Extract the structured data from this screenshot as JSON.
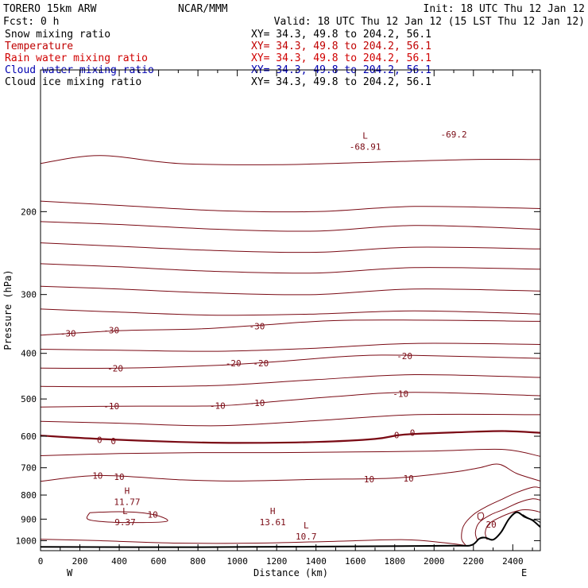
{
  "header": {
    "model": "TORERO  15km ARW",
    "org": "NCAR/MMM",
    "init": "Init: 18 UTC Thu 12 Jan 12",
    "fcst": "Fcst:    0 h",
    "valid": "Valid: 18 UTC Thu 12 Jan 12 (15 LST Thu 12 Jan 12)"
  },
  "fields": [
    {
      "label": "Snow mixing ratio",
      "color": "#000000",
      "xy": "XY=  34.3, 49.8 to 204.2, 56.1"
    },
    {
      "label": "Temperature",
      "color": "#c00000",
      "xy": "XY=  34.3, 49.8 to 204.2, 56.1"
    },
    {
      "label": "Rain water mixing ratio",
      "color": "#d00000",
      "xy": "XY=  34.3, 49.8 to 204.2, 56.1"
    },
    {
      "label": "Cloud water mixing ratio",
      "color": "#0000b0",
      "xy": "XY=  34.3, 49.8 to 204.2, 56.1"
    },
    {
      "label": "Cloud ice mixing ratio",
      "color": "#000000",
      "xy": "XY=  34.3, 49.8 to 204.2, 56.1"
    }
  ],
  "colors": {
    "contour": "#7a0a14",
    "terrain": "#000000",
    "text": "#000000"
  },
  "chart_data": {
    "type": "contour",
    "xlabel": "Distance (km)",
    "ylabel": "Pressure (hPa)",
    "xlim": [
      0,
      2540
    ],
    "ylim": [
      1050,
      100
    ],
    "y_scale": "log",
    "xticks": [
      0,
      200,
      400,
      600,
      800,
      1000,
      1200,
      1400,
      1600,
      1800,
      2000,
      2200,
      2400
    ],
    "yticks": [
      200,
      300,
      400,
      500,
      600,
      700,
      800,
      900,
      1000
    ],
    "x_ends": {
      "left": "W",
      "right": "E"
    },
    "contour_labels": [
      {
        "x": 140,
        "p": 363,
        "text": "-30"
      },
      {
        "x": 360,
        "p": 357,
        "text": "-30"
      },
      {
        "x": 1100,
        "p": 350,
        "text": "-30"
      },
      {
        "x": 380,
        "p": 430,
        "text": "-20"
      },
      {
        "x": 980,
        "p": 420,
        "text": "-20"
      },
      {
        "x": 1120,
        "p": 420,
        "text": "-20"
      },
      {
        "x": 1850,
        "p": 405,
        "text": "-20"
      },
      {
        "x": 360,
        "p": 518,
        "text": "-10"
      },
      {
        "x": 900,
        "p": 517,
        "text": "-10"
      },
      {
        "x": 1100,
        "p": 510,
        "text": "-10"
      },
      {
        "x": 1830,
        "p": 487,
        "text": "-10"
      },
      {
        "x": 300,
        "p": 611,
        "text": "0"
      },
      {
        "x": 370,
        "p": 614,
        "text": "0"
      },
      {
        "x": 1810,
        "p": 597,
        "text": "0"
      },
      {
        "x": 1890,
        "p": 589,
        "text": "0"
      },
      {
        "x": 290,
        "p": 727,
        "text": "10"
      },
      {
        "x": 400,
        "p": 731,
        "text": "10"
      },
      {
        "x": 1670,
        "p": 740,
        "text": "10"
      },
      {
        "x": 1870,
        "p": 737,
        "text": "10"
      },
      {
        "x": 570,
        "p": 880,
        "text": "10"
      },
      {
        "x": 2290,
        "p": 924,
        "text": "20"
      },
      {
        "x": 2100,
        "p": 137,
        "text": "-69.2"
      }
    ],
    "extrema": [
      {
        "x": 440,
        "p": 796,
        "mark": "H",
        "value": "11.77"
      },
      {
        "x": 430,
        "p": 878,
        "mark": "L",
        "value": "9.37"
      },
      {
        "x": 1180,
        "p": 878,
        "mark": "H",
        "value": "13.61"
      },
      {
        "x": 1350,
        "p": 942,
        "mark": "L",
        "value": "10.7"
      },
      {
        "x": 1650,
        "p": 140,
        "mark": "L",
        "value": "-68.91"
      }
    ]
  }
}
